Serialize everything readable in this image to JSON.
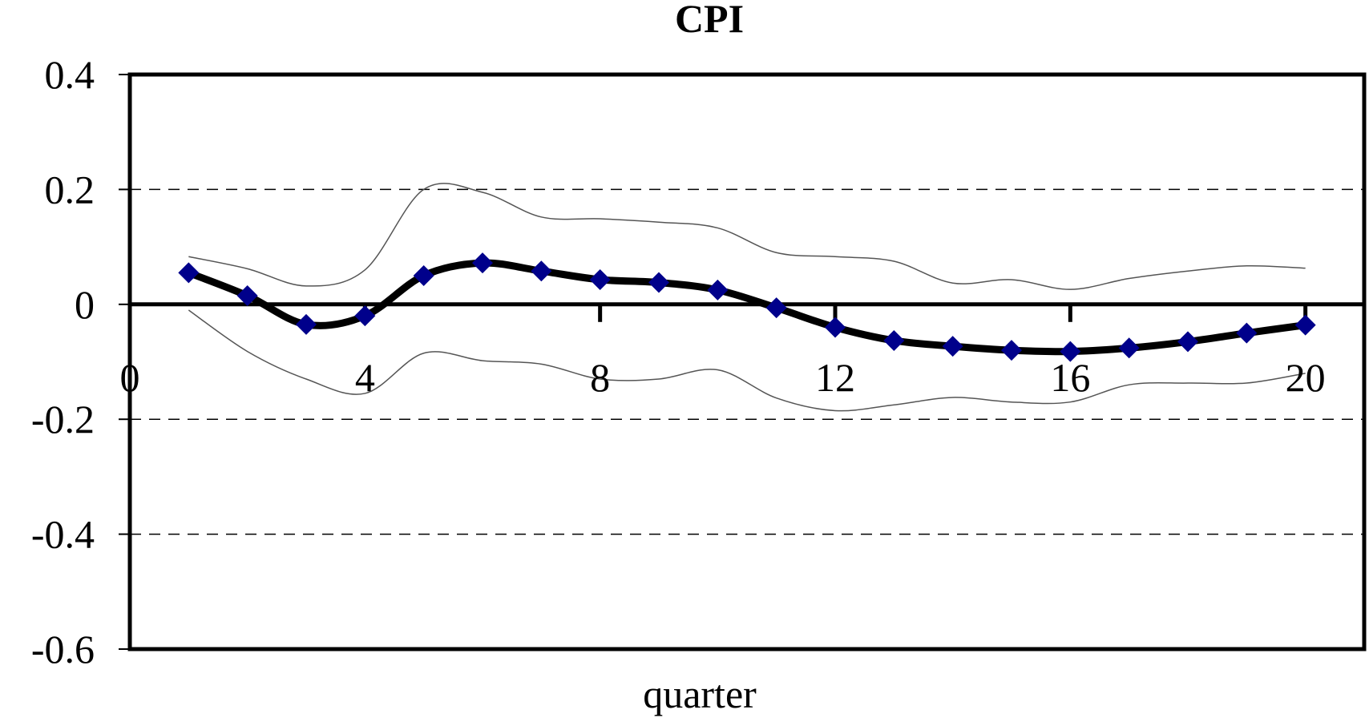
{
  "chart_data": {
    "type": "line",
    "title": "CPI",
    "xlabel": "quarter",
    "ylabel": "",
    "xlim": [
      0,
      21
    ],
    "ylim": [
      -0.6,
      0.4
    ],
    "x_ticks": [
      0,
      4,
      8,
      12,
      16,
      20
    ],
    "x_tick_labels": [
      "0",
      "4",
      "8",
      "12",
      "16",
      "20"
    ],
    "y_ticks": [
      0.4,
      0.2,
      0,
      -0.2,
      -0.4,
      -0.6
    ],
    "y_tick_labels": [
      "0.4",
      "0.2",
      "0",
      "-0.2",
      "-0.4",
      "-0.6"
    ],
    "grid": "dashed horizontal at 0.2, -0.2, -0.4",
    "legend": "none",
    "x": [
      1,
      2,
      3,
      4,
      5,
      6,
      7,
      8,
      9,
      10,
      11,
      12,
      13,
      14,
      15,
      16,
      17,
      18,
      19,
      20
    ],
    "series": [
      {
        "role": "estimate",
        "values": [
          0.055,
          0.015,
          -0.035,
          -0.02,
          0.05,
          0.072,
          0.058,
          0.043,
          0.038,
          0.025,
          -0.006,
          -0.04,
          -0.063,
          -0.073,
          -0.08,
          -0.082,
          -0.076,
          -0.065,
          -0.05,
          -0.036
        ],
        "color": "#000000",
        "marker_color": "#00008B"
      },
      {
        "role": "upper",
        "values": [
          0.083,
          0.062,
          0.032,
          0.06,
          0.2,
          0.195,
          0.152,
          0.149,
          0.143,
          0.133,
          0.09,
          0.083,
          0.075,
          0.037,
          0.043,
          0.026,
          0.045,
          0.058,
          0.067,
          0.063
        ],
        "color": "#555555"
      },
      {
        "role": "lower",
        "values": [
          -0.01,
          -0.082,
          -0.13,
          -0.155,
          -0.085,
          -0.098,
          -0.104,
          -0.13,
          -0.13,
          -0.114,
          -0.163,
          -0.185,
          -0.175,
          -0.162,
          -0.17,
          -0.17,
          -0.14,
          -0.137,
          -0.137,
          -0.12
        ],
        "color": "#555555"
      }
    ]
  }
}
